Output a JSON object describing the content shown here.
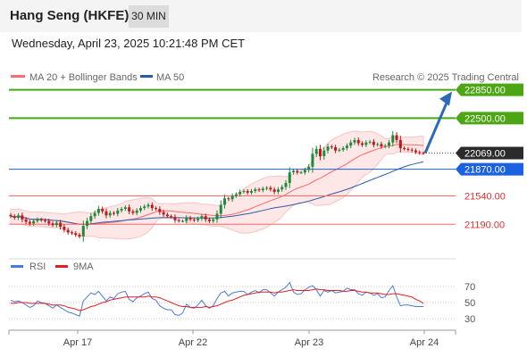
{
  "header": {
    "title": "Hang Seng (HKFE)",
    "timeframe": "30 MIN"
  },
  "subheader": {
    "datetime": "Wednesday, April 23, 2025 10:21:48 PM CET"
  },
  "colors": {
    "resistance": "#4ca614",
    "support": "#ff6a6a",
    "pivot": "#1a62e0",
    "ma20": "#ff6a6a",
    "ma50": "#2d5aa6",
    "rsi": "#4a7bd8",
    "rsi_ma": "#e02020",
    "candle_up": "#1f8a3a",
    "candle_down": "#c01818",
    "arrow": "#2d6ab8"
  },
  "chart_data": [
    {
      "type": "line",
      "title": "",
      "legend": [
        "MA 20 + Bollinger Bands",
        "MA 50"
      ],
      "legend_placement": "top-left",
      "copyright": "Research © 2025 Trading Central",
      "x_ticks": [
        "Apr 17",
        "Apr 22",
        "Apr 23",
        "Apr 24"
      ],
      "last_price": 22069.0,
      "levels": [
        {
          "value": 22850.0,
          "label": "22850.00",
          "kind": "resistance"
        },
        {
          "value": 22500.0,
          "label": "22500.00",
          "kind": "resistance"
        },
        {
          "value": 21870.0,
          "label": "21870.00",
          "kind": "pivot"
        },
        {
          "value": 21540.0,
          "label": "21540.00",
          "kind": "support"
        },
        {
          "value": 21190.0,
          "label": "21190.00",
          "kind": "support"
        }
      ],
      "last_price_label": "22069.00",
      "ylim": [
        20780,
        23090
      ],
      "series": [
        {
          "values": [
            21290,
            21270,
            21300,
            21250,
            21220,
            21200,
            21230,
            21250,
            21240,
            21230,
            21200,
            21180,
            21210,
            21160,
            21120,
            21090,
            21080,
            21060,
            21040,
            21170,
            21230,
            21290,
            21330,
            21380,
            21350,
            21300,
            21330,
            21320,
            21360,
            21380,
            21400,
            21350,
            21330,
            21360,
            21390,
            21410,
            21430,
            21390,
            21380,
            21340,
            21310,
            21290,
            21280,
            21240,
            21230,
            21230,
            21270,
            21250,
            21240,
            21260,
            21290,
            21250,
            21230,
            21250,
            21320,
            21430,
            21510,
            21500,
            21540,
            21560,
            21590,
            21600,
            21580,
            21600,
            21620,
            21610,
            21630,
            21640,
            21620,
            21590,
            21620,
            21650,
            21700,
            21830,
            21850,
            21830,
            21830,
            21860,
            21900,
            22060,
            22120,
            22030,
            22100,
            22150,
            22140,
            22100,
            22110,
            22130,
            22160,
            22200,
            22230,
            22190,
            22170,
            22200,
            22210,
            22170,
            22180,
            22150,
            22160,
            22200,
            22290,
            22230,
            22130,
            22120,
            22110,
            22100,
            22080,
            22070,
            22069
          ]
        }
      ]
    },
    {
      "type": "line",
      "title": "",
      "legend": [
        "RSI",
        "9MA"
      ],
      "legend_placement": "top-left",
      "y_ticks": [
        70,
        50,
        30
      ],
      "ylim": [
        20,
        80
      ],
      "series": [
        {
          "values": [
            53,
            51,
            52,
            50,
            47,
            44,
            46,
            52,
            50,
            49,
            46,
            43,
            47,
            44,
            41,
            38,
            37,
            35,
            33,
            52,
            57,
            62,
            60,
            64,
            58,
            52,
            57,
            55,
            61,
            63,
            64,
            54,
            51,
            56,
            58,
            61,
            63,
            55,
            53,
            46,
            43,
            41,
            41,
            35,
            34,
            37,
            48,
            44,
            43,
            47,
            53,
            46,
            43,
            46,
            55,
            62,
            64,
            58,
            62,
            63,
            64,
            64,
            60,
            63,
            65,
            62,
            66,
            66,
            62,
            58,
            63,
            66,
            69,
            75,
            63,
            60,
            61,
            66,
            69,
            71,
            66,
            58,
            65,
            63,
            65,
            62,
            63,
            64,
            68,
            66,
            66,
            61,
            59,
            63,
            62,
            59,
            61,
            56,
            57,
            65,
            71,
            57,
            46,
            47,
            47,
            46,
            45,
            45,
            45
          ]
        },
        {
          "values": [
            49,
            49,
            50,
            50,
            50,
            49,
            49,
            49,
            49,
            49,
            48,
            47,
            47,
            47,
            46,
            44,
            43,
            42,
            40,
            41,
            43,
            45,
            46,
            48,
            50,
            51,
            53,
            54,
            55,
            56,
            57,
            57,
            57,
            57,
            57,
            57,
            58,
            57,
            57,
            56,
            54,
            52,
            50,
            48,
            46,
            45,
            45,
            44,
            44,
            44,
            44,
            45,
            44,
            45,
            46,
            48,
            50,
            52,
            53,
            55,
            57,
            59,
            60,
            61,
            62,
            63,
            63,
            63,
            63,
            62,
            63,
            63,
            64,
            65,
            66,
            65,
            65,
            65,
            65,
            66,
            67,
            66,
            66,
            65,
            65,
            65,
            65,
            64,
            64,
            65,
            65,
            64,
            63,
            63,
            62,
            62,
            62,
            61,
            60,
            60,
            61,
            61,
            60,
            59,
            58,
            57,
            54,
            52,
            49
          ]
        }
      ]
    }
  ]
}
